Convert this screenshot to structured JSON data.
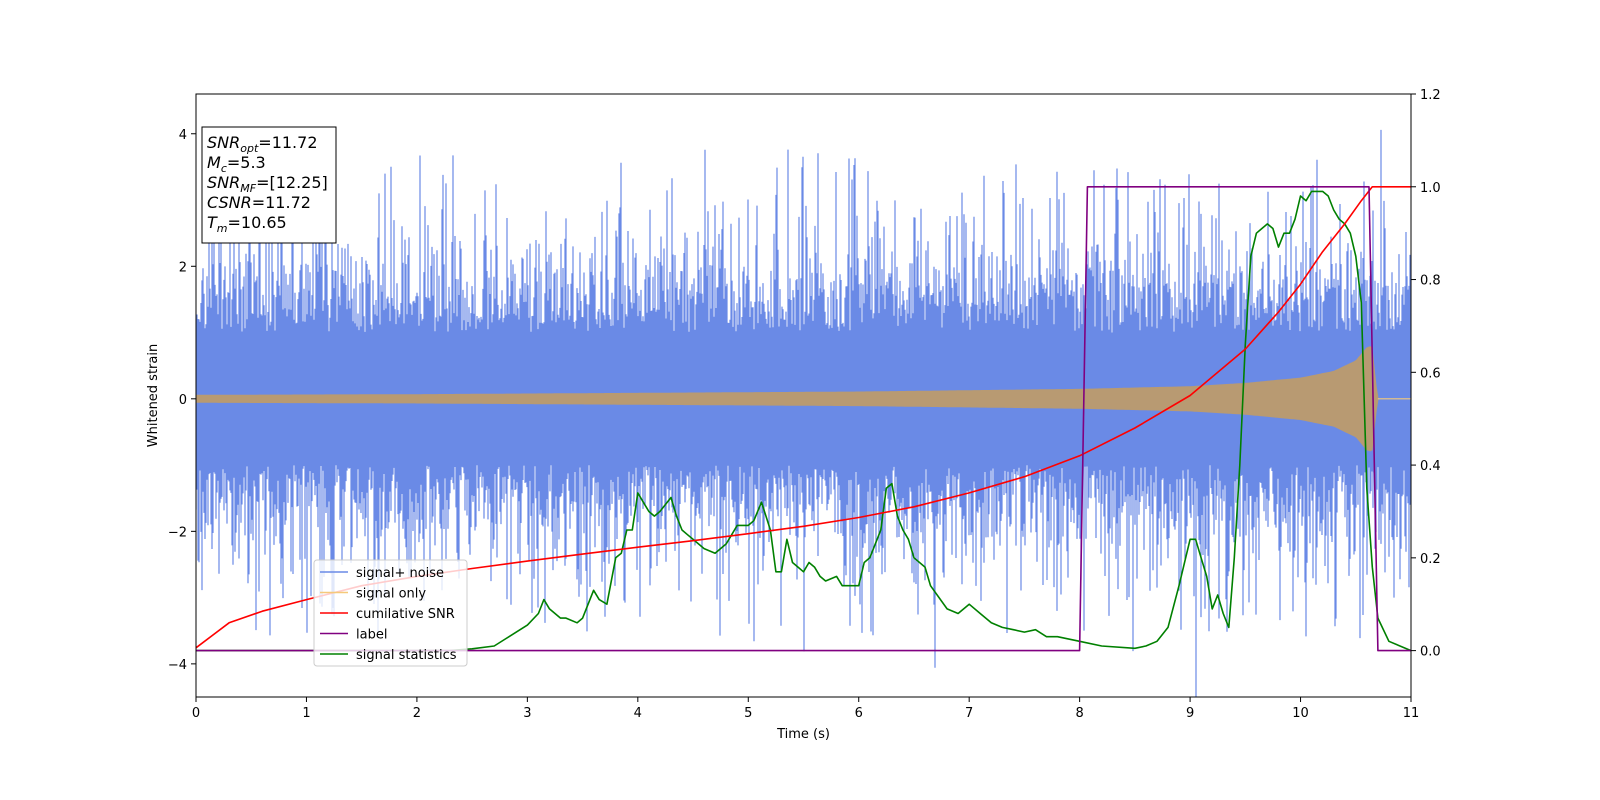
{
  "chart_data": {
    "type": "line",
    "xlabel": "Time (s)",
    "ylabel": "Whitened strain",
    "xlim": [
      0,
      11
    ],
    "ylim_left": [
      -4.5,
      4.6
    ],
    "ylim_right": [
      -0.1,
      1.2
    ],
    "x_ticks": [
      "0",
      "1",
      "2",
      "3",
      "4",
      "5",
      "6",
      "7",
      "8",
      "9",
      "10",
      "11"
    ],
    "y_left_ticks": [
      "−4",
      "−2",
      "0",
      "2",
      "4"
    ],
    "y_right_ticks": [
      "0.0",
      "0.2",
      "0.4",
      "0.6",
      "0.8",
      "1.0",
      "1.2"
    ],
    "y_left_tick_values": [
      -4,
      -2,
      0,
      2,
      4
    ],
    "y_right_tick_values": [
      0.0,
      0.2,
      0.4,
      0.6,
      0.8,
      1.0,
      1.2
    ],
    "colors": {
      "noise": "#6a8ae6",
      "signal": "#f5c97a",
      "overlap": "#b89a72",
      "csnr": "#ff0000",
      "label": "#800080",
      "stat": "#008000"
    },
    "legend_position": "lower-left",
    "legend": [
      {
        "label": "signal+ noise",
        "color": "#6a8ae6"
      },
      {
        "label": "signal only",
        "color": "#f5c97a"
      },
      {
        "label": "cumilative SNR",
        "color": "#ff0000"
      },
      {
        "label": "label",
        "color": "#800080"
      },
      {
        "label": "signal statistics",
        "color": "#008000"
      }
    ],
    "info_box": {
      "position": "top-left",
      "lines": [
        {
          "sym": "SNR",
          "sub": "opt",
          "val": "=11.72"
        },
        {
          "sym": "M",
          "sub": "c",
          "val": "=5.3"
        },
        {
          "sym": "SNR",
          "sub": "MF",
          "val": "=[12.25]"
        },
        {
          "sym": "CSNR",
          "sub": "",
          "val": "=11.72"
        },
        {
          "sym": "T",
          "sub": "m",
          "val": "=10.65"
        }
      ]
    },
    "series": [
      {
        "name": "signal+ noise",
        "axis": "left",
        "description": "whitened noisy strain, amplitude roughly ±2.5 with spikes to ±3.5 over 0–11 s",
        "x_range": [
          0,
          11
        ],
        "typical_amplitude": 2.0,
        "peak_amplitude": 3.7
      },
      {
        "name": "signal only",
        "axis": "left",
        "description": "chirp envelope growing from ~0.05 to ~0.8 until merger at ~10.65 s, then 0",
        "envelope_x": [
          0,
          2,
          4,
          6,
          8,
          9,
          9.5,
          10,
          10.3,
          10.5,
          10.6,
          10.65,
          10.7,
          11
        ],
        "envelope_y": [
          0.06,
          0.07,
          0.09,
          0.11,
          0.15,
          0.19,
          0.24,
          0.32,
          0.42,
          0.58,
          0.78,
          0.8,
          0.0,
          0.0
        ]
      },
      {
        "name": "cumilative SNR",
        "axis": "right",
        "x": [
          0,
          0.3,
          0.6,
          1,
          1.5,
          2,
          2.5,
          3,
          3.5,
          4,
          4.5,
          5,
          5.5,
          6,
          6.5,
          7,
          7.5,
          8,
          8.5,
          9,
          9.5,
          9.8,
          10,
          10.2,
          10.4,
          10.55,
          10.65,
          10.7,
          11
        ],
        "y": [
          0.006,
          0.06,
          0.085,
          0.11,
          0.14,
          0.16,
          0.177,
          0.193,
          0.208,
          0.223,
          0.237,
          0.252,
          0.268,
          0.287,
          0.31,
          0.34,
          0.375,
          0.42,
          0.48,
          0.55,
          0.65,
          0.73,
          0.79,
          0.86,
          0.92,
          0.97,
          1.0,
          1.0,
          1.0
        ]
      },
      {
        "name": "label",
        "axis": "right",
        "x": [
          0,
          8.0,
          8.07,
          10.62,
          10.7,
          11
        ],
        "y": [
          0.0,
          0.0,
          1.0,
          1.0,
          0.0,
          0.0
        ]
      },
      {
        "name": "signal statistics",
        "axis": "right",
        "x": [
          0,
          0.5,
          1,
          1.5,
          2,
          2.3,
          2.5,
          2.7,
          2.8,
          2.9,
          3.0,
          3.1,
          3.15,
          3.2,
          3.3,
          3.35,
          3.45,
          3.5,
          3.6,
          3.65,
          3.72,
          3.8,
          3.85,
          3.9,
          3.95,
          4.0,
          4.05,
          4.1,
          4.15,
          4.2,
          4.3,
          4.35,
          4.4,
          4.45,
          4.5,
          4.6,
          4.7,
          4.8,
          4.85,
          4.9,
          5.0,
          5.05,
          5.12,
          5.2,
          5.25,
          5.3,
          5.35,
          5.4,
          5.45,
          5.5,
          5.55,
          5.6,
          5.65,
          5.7,
          5.8,
          5.85,
          5.9,
          6.0,
          6.05,
          6.1,
          6.15,
          6.2,
          6.25,
          6.3,
          6.35,
          6.4,
          6.45,
          6.5,
          6.6,
          6.65,
          6.8,
          6.9,
          7.0,
          7.1,
          7.2,
          7.3,
          7.4,
          7.5,
          7.6,
          7.7,
          7.8,
          8.0,
          8.2,
          8.5,
          8.6,
          8.7,
          8.8,
          8.9,
          9.0,
          9.05,
          9.1,
          9.15,
          9.2,
          9.25,
          9.3,
          9.35,
          9.4,
          9.45,
          9.5,
          9.55,
          9.6,
          9.65,
          9.7,
          9.75,
          9.8,
          9.85,
          9.9,
          9.95,
          10.0,
          10.05,
          10.1,
          10.15,
          10.2,
          10.25,
          10.3,
          10.35,
          10.4,
          10.45,
          10.5,
          10.55,
          10.6,
          10.65,
          10.7,
          10.8,
          11
        ],
        "y": [
          0.0,
          0.0,
          0.0,
          0.0,
          0.0,
          0.0,
          0.004,
          0.01,
          0.025,
          0.04,
          0.055,
          0.08,
          0.11,
          0.09,
          0.07,
          0.07,
          0.06,
          0.07,
          0.13,
          0.11,
          0.1,
          0.2,
          0.21,
          0.26,
          0.26,
          0.34,
          0.32,
          0.3,
          0.29,
          0.3,
          0.33,
          0.29,
          0.26,
          0.25,
          0.24,
          0.22,
          0.21,
          0.23,
          0.25,
          0.27,
          0.27,
          0.28,
          0.32,
          0.26,
          0.17,
          0.17,
          0.24,
          0.19,
          0.18,
          0.17,
          0.19,
          0.18,
          0.16,
          0.15,
          0.16,
          0.14,
          0.14,
          0.14,
          0.19,
          0.2,
          0.23,
          0.26,
          0.35,
          0.36,
          0.29,
          0.26,
          0.24,
          0.2,
          0.18,
          0.14,
          0.09,
          0.08,
          0.1,
          0.08,
          0.06,
          0.05,
          0.045,
          0.04,
          0.045,
          0.03,
          0.03,
          0.02,
          0.01,
          0.005,
          0.01,
          0.02,
          0.05,
          0.14,
          0.24,
          0.24,
          0.2,
          0.16,
          0.09,
          0.12,
          0.08,
          0.05,
          0.2,
          0.4,
          0.66,
          0.85,
          0.9,
          0.91,
          0.92,
          0.91,
          0.87,
          0.9,
          0.9,
          0.93,
          0.98,
          0.97,
          0.99,
          0.99,
          0.99,
          0.98,
          0.95,
          0.93,
          0.92,
          0.9,
          0.85,
          0.75,
          0.35,
          0.18,
          0.07,
          0.02,
          0.0
        ]
      }
    ]
  }
}
